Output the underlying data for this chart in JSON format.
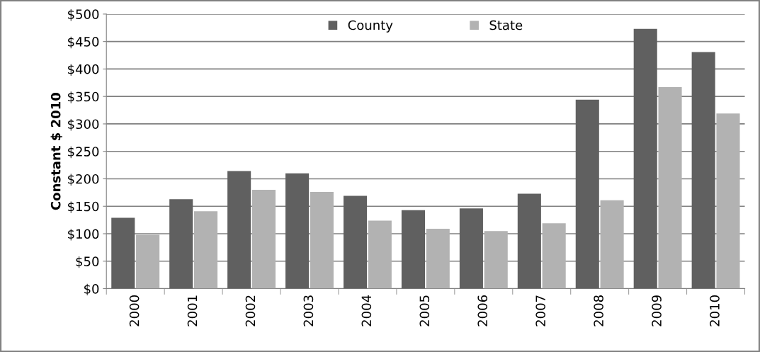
{
  "chart_data": {
    "type": "bar",
    "ylabel": "Constant $ 2010",
    "categories": [
      "2000",
      "2001",
      "2002",
      "2003",
      "2004",
      "2005",
      "2006",
      "2007",
      "2008",
      "2009",
      "2010"
    ],
    "series": [
      {
        "name": "County",
        "color": "#606060",
        "values": [
          129,
          163,
          214,
          210,
          169,
          143,
          146,
          173,
          344,
          473,
          431
        ]
      },
      {
        "name": "State",
        "color": "#b2b2b2",
        "values": [
          98,
          141,
          180,
          176,
          124,
          109,
          105,
          119,
          161,
          367,
          319
        ]
      }
    ],
    "ylim": [
      0,
      500
    ],
    "yticks": [
      {
        "value": 0,
        "label": "$0"
      },
      {
        "value": 50,
        "label": "$50"
      },
      {
        "value": 100,
        "label": "$100"
      },
      {
        "value": 150,
        "label": "$150"
      },
      {
        "value": 200,
        "label": "$200"
      },
      {
        "value": 250,
        "label": "$250"
      },
      {
        "value": 300,
        "label": "$300"
      },
      {
        "value": 350,
        "label": "$350"
      },
      {
        "value": 400,
        "label": "$400"
      },
      {
        "value": 450,
        "label": "$450"
      },
      {
        "value": 500,
        "label": "$500"
      }
    ],
    "grid": "y",
    "legend": "top"
  }
}
